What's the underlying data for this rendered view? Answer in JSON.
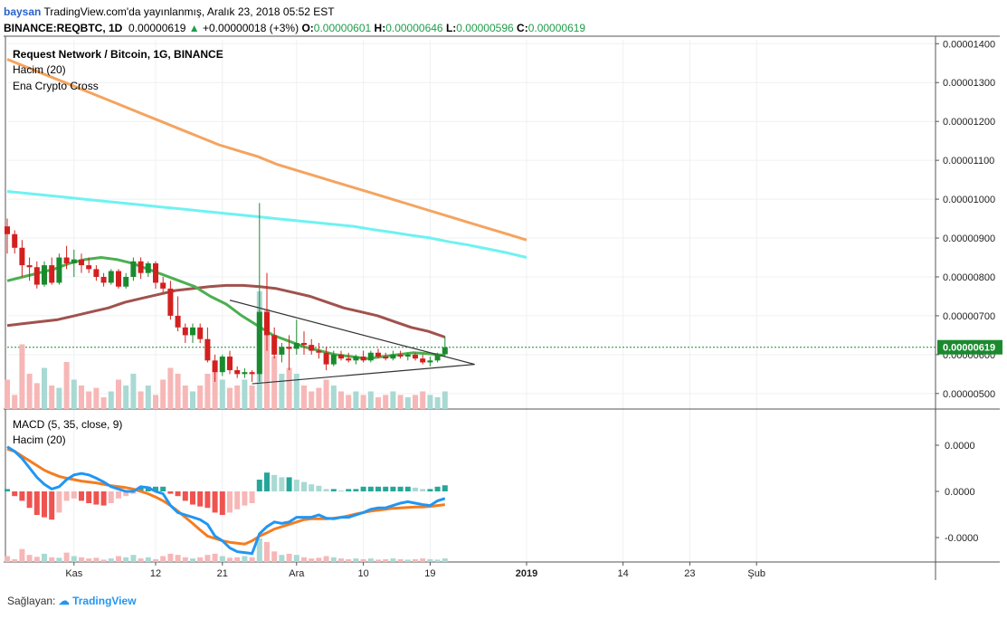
{
  "header": {
    "username": "baysan",
    "publish_text": "TradingView.com'da yayınlanmış, Aralık 23, 2018 05:52 EST",
    "symbol": "BINANCE:REQBTC, 1D",
    "last": "0.00000619",
    "change": "+0.00000018 (+3%)",
    "o_label": "O:",
    "o_value": "0.00000601",
    "h_label": "H:",
    "h_value": "0.00000646",
    "l_label": "L:",
    "l_value": "0.00000596",
    "c_label": "C:",
    "c_value": "0.00000619"
  },
  "main_legend": {
    "title": "Request Network / Bitcoin, 1G, BINANCE",
    "volume": "Hacim (20)",
    "indicator": "Ena Crypto Cross"
  },
  "macd_legend": {
    "title": "MACD (5, 35, close, 9)",
    "volume": "Hacim (20)"
  },
  "footer": {
    "provided_by": "Sağlayan:",
    "brand": "TradingView"
  },
  "chart_data": [
    {
      "type": "candlestick",
      "x_start_date": "2018-10-23",
      "y_ticks": [
        "0.00000500",
        "0.00000600",
        "0.00000700",
        "0.00000800",
        "0.00000900",
        "0.00001000",
        "0.00001100",
        "0.00001200",
        "0.00001300",
        "0.00001400"
      ],
      "ylim": [
        4.6e-06,
        1.41e-05
      ],
      "last_price_label": "0.00000619",
      "last_price": 6.19,
      "price_unit": "1e-6 BTC",
      "x_ticks": [
        {
          "label": "Kas",
          "day": 9
        },
        {
          "label": "12",
          "day": 20
        },
        {
          "label": "21",
          "day": 29
        },
        {
          "label": "Ara",
          "day": 39
        },
        {
          "label": "10",
          "day": 48
        },
        {
          "label": "19",
          "day": 57
        },
        {
          "label": "2019",
          "day": 70
        },
        {
          "label": "14",
          "day": 83
        },
        {
          "label": "23",
          "day": 92
        },
        {
          "label": "Şub",
          "day": 101
        }
      ],
      "candles": [
        {
          "o": 9.3,
          "h": 9.5,
          "l": 8.6,
          "c": 9.1
        },
        {
          "o": 9.1,
          "h": 9.2,
          "l": 8.6,
          "c": 8.75
        },
        {
          "o": 8.75,
          "h": 8.95,
          "l": 8.0,
          "c": 8.3
        },
        {
          "o": 8.3,
          "h": 8.5,
          "l": 7.9,
          "c": 8.25
        },
        {
          "o": 8.25,
          "h": 8.4,
          "l": 7.7,
          "c": 7.8
        },
        {
          "o": 7.8,
          "h": 8.4,
          "l": 7.75,
          "c": 8.3
        },
        {
          "o": 8.3,
          "h": 8.5,
          "l": 7.8,
          "c": 7.85
        },
        {
          "o": 7.85,
          "h": 8.6,
          "l": 7.8,
          "c": 8.5
        },
        {
          "o": 8.5,
          "h": 8.8,
          "l": 8.2,
          "c": 8.35
        },
        {
          "o": 8.35,
          "h": 8.7,
          "l": 8.0,
          "c": 8.45
        },
        {
          "o": 8.45,
          "h": 8.6,
          "l": 8.1,
          "c": 8.3
        },
        {
          "o": 8.3,
          "h": 8.5,
          "l": 8.1,
          "c": 8.2
        },
        {
          "o": 8.2,
          "h": 8.3,
          "l": 7.9,
          "c": 8.0
        },
        {
          "o": 8.0,
          "h": 8.1,
          "l": 7.75,
          "c": 7.85
        },
        {
          "o": 7.85,
          "h": 8.2,
          "l": 7.8,
          "c": 8.15
        },
        {
          "o": 8.15,
          "h": 8.2,
          "l": 7.7,
          "c": 7.75
        },
        {
          "o": 7.75,
          "h": 8.1,
          "l": 7.7,
          "c": 8.0
        },
        {
          "o": 8.0,
          "h": 8.5,
          "l": 7.9,
          "c": 8.4
        },
        {
          "o": 8.4,
          "h": 8.5,
          "l": 7.95,
          "c": 8.1
        },
        {
          "o": 8.1,
          "h": 8.4,
          "l": 8.0,
          "c": 8.35
        },
        {
          "o": 8.35,
          "h": 8.4,
          "l": 7.7,
          "c": 7.85
        },
        {
          "o": 7.85,
          "h": 8.0,
          "l": 7.6,
          "c": 7.7
        },
        {
          "o": 7.7,
          "h": 7.9,
          "l": 6.9,
          "c": 7.0
        },
        {
          "o": 7.0,
          "h": 7.5,
          "l": 6.6,
          "c": 6.7
        },
        {
          "o": 6.7,
          "h": 6.8,
          "l": 6.3,
          "c": 6.5
        },
        {
          "o": 6.5,
          "h": 6.8,
          "l": 6.3,
          "c": 6.7
        },
        {
          "o": 6.7,
          "h": 6.8,
          "l": 6.3,
          "c": 6.4
        },
        {
          "o": 6.4,
          "h": 6.7,
          "l": 5.8,
          "c": 5.85
        },
        {
          "o": 5.85,
          "h": 6.0,
          "l": 5.3,
          "c": 5.55
        },
        {
          "o": 5.55,
          "h": 6.0,
          "l": 5.45,
          "c": 5.95
        },
        {
          "o": 5.95,
          "h": 6.1,
          "l": 5.5,
          "c": 5.6
        },
        {
          "o": 5.6,
          "h": 5.7,
          "l": 5.4,
          "c": 5.5
        },
        {
          "o": 5.5,
          "h": 5.65,
          "l": 5.4,
          "c": 5.55
        },
        {
          "o": 5.55,
          "h": 5.6,
          "l": 5.3,
          "c": 5.5
        },
        {
          "o": 5.5,
          "h": 9.9,
          "l": 5.3,
          "c": 7.1
        },
        {
          "o": 7.1,
          "h": 8.1,
          "l": 6.1,
          "c": 6.5
        },
        {
          "o": 6.5,
          "h": 6.7,
          "l": 5.9,
          "c": 6.0
        },
        {
          "o": 6.0,
          "h": 6.3,
          "l": 5.8,
          "c": 6.2
        },
        {
          "o": 6.2,
          "h": 6.5,
          "l": 5.6,
          "c": 6.15
        },
        {
          "o": 6.15,
          "h": 6.9,
          "l": 6.0,
          "c": 6.3
        },
        {
          "o": 6.3,
          "h": 6.6,
          "l": 6.0,
          "c": 6.25
        },
        {
          "o": 6.25,
          "h": 6.4,
          "l": 6.0,
          "c": 6.1
        },
        {
          "o": 6.1,
          "h": 6.3,
          "l": 5.9,
          "c": 6.05
        },
        {
          "o": 6.05,
          "h": 6.2,
          "l": 5.6,
          "c": 5.75
        },
        {
          "o": 5.75,
          "h": 6.1,
          "l": 5.7,
          "c": 6.0
        },
        {
          "o": 6.0,
          "h": 6.1,
          "l": 5.85,
          "c": 5.9
        },
        {
          "o": 5.9,
          "h": 6.05,
          "l": 5.8,
          "c": 5.85
        },
        {
          "o": 5.85,
          "h": 6.0,
          "l": 5.75,
          "c": 5.95
        },
        {
          "o": 5.95,
          "h": 6.1,
          "l": 5.8,
          "c": 5.85
        },
        {
          "o": 5.85,
          "h": 6.1,
          "l": 5.8,
          "c": 6.05
        },
        {
          "o": 6.05,
          "h": 6.15,
          "l": 5.9,
          "c": 5.95
        },
        {
          "o": 5.95,
          "h": 6.05,
          "l": 5.85,
          "c": 5.9
        },
        {
          "o": 5.9,
          "h": 6.1,
          "l": 5.85,
          "c": 6.0
        },
        {
          "o": 6.0,
          "h": 6.1,
          "l": 5.9,
          "c": 5.95
        },
        {
          "o": 5.95,
          "h": 6.05,
          "l": 5.85,
          "c": 6.0
        },
        {
          "o": 6.0,
          "h": 6.05,
          "l": 5.85,
          "c": 5.9
        },
        {
          "o": 5.9,
          "h": 6.0,
          "l": 5.75,
          "c": 5.8
        },
        {
          "o": 5.8,
          "h": 5.95,
          "l": 5.7,
          "c": 5.85
        },
        {
          "o": 5.85,
          "h": 6.05,
          "l": 5.8,
          "c": 6.01
        },
        {
          "o": 6.01,
          "h": 6.46,
          "l": 5.96,
          "c": 6.19
        }
      ],
      "volume": [
        0.25,
        0.12,
        0.55,
        0.3,
        0.22,
        0.35,
        0.2,
        0.18,
        0.4,
        0.25,
        0.2,
        0.15,
        0.18,
        0.1,
        0.15,
        0.25,
        0.2,
        0.3,
        0.15,
        0.2,
        0.12,
        0.25,
        0.35,
        0.3,
        0.2,
        0.15,
        0.2,
        0.3,
        0.35,
        0.25,
        0.18,
        0.2,
        0.25,
        0.2,
        1.0,
        0.85,
        0.45,
        0.3,
        0.35,
        0.3,
        0.2,
        0.15,
        0.18,
        0.25,
        0.2,
        0.15,
        0.12,
        0.15,
        0.12,
        0.15,
        0.1,
        0.12,
        0.15,
        0.12,
        0.1,
        0.12,
        0.15,
        0.12,
        0.1,
        0.15
      ],
      "series": [
        {
          "color": "#f4a460",
          "values": [
            13.6,
            13.4,
            13.2,
            13.0,
            12.8,
            12.6,
            12.4,
            12.2,
            12.0,
            11.8,
            11.6,
            11.4,
            11.25,
            11.1,
            10.9,
            10.75,
            10.6,
            10.45,
            10.3,
            10.15,
            10.0,
            9.85,
            9.7,
            9.55,
            9.4,
            9.25,
            9.1,
            8.95
          ]
        },
        {
          "color": "#6ff2f2",
          "values": [
            10.2,
            10.15,
            10.1,
            10.05,
            10.0,
            9.95,
            9.9,
            9.85,
            9.8,
            9.75,
            9.7,
            9.65,
            9.6,
            9.55,
            9.5,
            9.45,
            9.4,
            9.35,
            9.3,
            9.22,
            9.15,
            9.07,
            9.0,
            8.9,
            8.82,
            8.72,
            8.62,
            8.5
          ]
        },
        {
          "color": "#a0524d",
          "values": [
            6.75,
            6.8,
            6.85,
            6.9,
            7.0,
            7.1,
            7.2,
            7.35,
            7.45,
            7.55,
            7.65,
            7.7,
            7.75,
            7.78,
            7.78,
            7.75,
            7.7,
            7.6,
            7.5,
            7.35,
            7.2,
            7.1,
            7.0,
            6.85,
            6.7,
            6.6,
            6.45
          ]
        },
        {
          "color": "#4caf50",
          "values": [
            7.9,
            8.0,
            8.1,
            8.2,
            8.35,
            8.45,
            8.5,
            8.45,
            8.35,
            8.2,
            8.05,
            7.9,
            7.75,
            7.5,
            7.3,
            7.0,
            6.75,
            6.5,
            6.35,
            6.2,
            6.1,
            6.0,
            5.95,
            5.9,
            5.95,
            6.0,
            6.05,
            6.02,
            5.98
          ]
        }
      ],
      "triangle": [
        {
          "from": [
            30,
            7.4
          ],
          "to": [
            63,
            5.75
          ]
        },
        {
          "from": [
            33,
            5.25
          ],
          "to": [
            63,
            5.75
          ]
        }
      ]
    },
    {
      "type": "macd",
      "y_ticks": [
        "0.0000",
        "0.0000",
        "-0.0000"
      ],
      "macd_line": [
        0.95,
        0.85,
        0.7,
        0.5,
        0.3,
        0.15,
        0.05,
        0.1,
        0.25,
        0.35,
        0.38,
        0.35,
        0.28,
        0.2,
        0.1,
        0.05,
        0.0,
        0.0,
        0.1,
        0.08,
        0.0,
        -0.05,
        -0.3,
        -0.45,
        -0.5,
        -0.55,
        -0.6,
        -0.7,
        -0.95,
        -1.05,
        -1.2,
        -1.28,
        -1.3,
        -1.32,
        -0.9,
        -0.75,
        -0.65,
        -0.68,
        -0.65,
        -0.55,
        -0.55,
        -0.55,
        -0.5,
        -0.57,
        -0.58,
        -0.55,
        -0.55,
        -0.5,
        -0.45,
        -0.38,
        -0.35,
        -0.35,
        -0.3,
        -0.25,
        -0.22,
        -0.25,
        -0.28,
        -0.3,
        -0.2,
        -0.15
      ],
      "signal_line": [
        0.9,
        0.85,
        0.75,
        0.65,
        0.55,
        0.45,
        0.38,
        0.32,
        0.28,
        0.25,
        0.22,
        0.2,
        0.18,
        0.15,
        0.12,
        0.1,
        0.08,
        0.05,
        0.0,
        -0.05,
        -0.12,
        -0.2,
        -0.3,
        -0.42,
        -0.55,
        -0.68,
        -0.82,
        -0.95,
        -1.0,
        -1.05,
        -1.08,
        -1.1,
        -1.12,
        -1.05,
        -0.95,
        -0.88,
        -0.8,
        -0.75,
        -0.7,
        -0.65,
        -0.6,
        -0.58,
        -0.58,
        -0.58,
        -0.57,
        -0.55,
        -0.52,
        -0.48,
        -0.45,
        -0.42,
        -0.4,
        -0.38,
        -0.36,
        -0.35,
        -0.34,
        -0.33,
        -0.33,
        -0.32,
        -0.3,
        -0.28
      ],
      "histogram": [
        0.05,
        -0.1,
        -0.2,
        -0.35,
        -0.5,
        -0.55,
        -0.6,
        -0.45,
        -0.2,
        -0.15,
        -0.2,
        -0.25,
        -0.28,
        -0.3,
        -0.25,
        -0.15,
        -0.1,
        -0.05,
        0.1,
        0.1,
        0.1,
        0.1,
        -0.05,
        -0.1,
        -0.2,
        -0.28,
        -0.32,
        -0.35,
        -0.45,
        -0.5,
        -0.45,
        -0.38,
        -0.3,
        -0.25,
        0.25,
        0.4,
        0.35,
        0.3,
        0.3,
        0.25,
        0.2,
        0.15,
        0.12,
        0.05,
        0.05,
        0.02,
        0.05,
        0.05,
        0.1,
        0.1,
        0.1,
        0.1,
        0.1,
        0.1,
        0.1,
        0.08,
        0.05,
        0.05,
        0.1,
        0.13
      ]
    }
  ]
}
